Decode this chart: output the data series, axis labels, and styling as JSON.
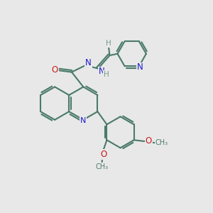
{
  "bg_color": "#e8e8e8",
  "bond_color": "#4a7a6a",
  "nitrogen_color": "#1a1acc",
  "oxygen_color": "#cc1a1a",
  "hydrogen_color": "#7a9a8a",
  "line_width": 1.5,
  "figsize": [
    3.0,
    3.0
  ],
  "dpi": 100,
  "xlim": [
    0,
    10
  ],
  "ylim": [
    0,
    10
  ]
}
